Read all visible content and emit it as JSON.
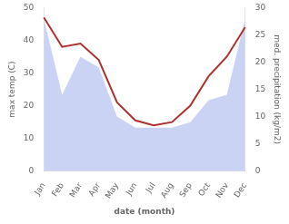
{
  "chart_data": {
    "type": "line",
    "categories": [
      "Jan",
      "Feb",
      "Mar",
      "Apr",
      "May",
      "Jun",
      "Jul",
      "Aug",
      "Sep",
      "Oct",
      "Nov",
      "Dec"
    ],
    "xlabel": "date (month)",
    "ylabel": "max temp (C)",
    "y2label": "med. precipitation (kg/m2)",
    "series": [
      {
        "type": "area",
        "color": "#b8c4f0",
        "axis": "y2",
        "values": [
          28,
          14,
          21,
          19,
          10,
          8,
          8,
          8,
          9,
          13,
          14,
          28
        ]
      },
      {
        "type": "line",
        "color": "#b03030",
        "values": [
          47,
          38,
          39,
          34,
          21,
          15.5,
          14,
          15,
          20,
          29,
          35,
          44
        ]
      }
    ],
    "ylim": [
      0,
      50
    ],
    "yticks": [
      0,
      10,
      20,
      30,
      40,
      50
    ],
    "y2lim": [
      0,
      30
    ],
    "y2ticks": [
      0,
      5,
      10,
      15,
      20,
      25,
      30
    ],
    "grid": false
  }
}
